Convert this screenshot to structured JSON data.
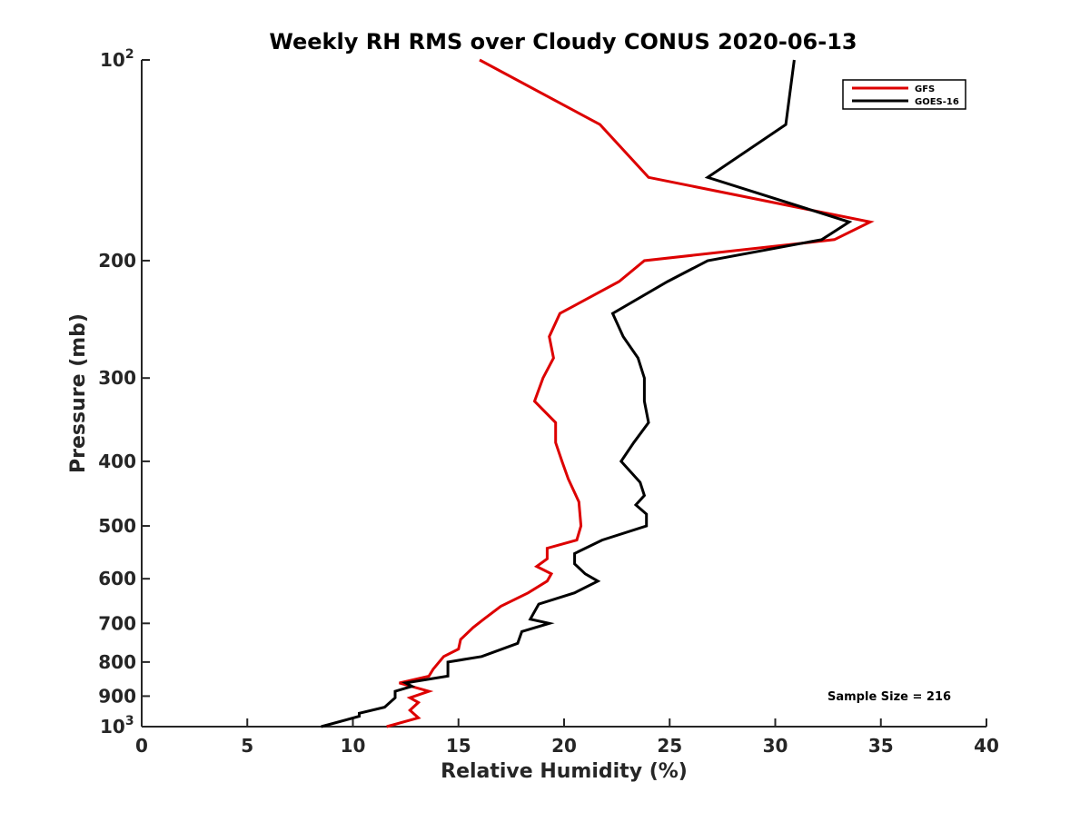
{
  "chart_data": {
    "type": "line",
    "title": "Weekly RH RMS over Cloudy CONUS 2020-06-13",
    "xlabel": "Relative Humidity (%)",
    "ylabel": "Pressure (mb)",
    "xlim": [
      0,
      40
    ],
    "ylim": [
      100,
      1000
    ],
    "y_scale": "log",
    "y_reversed": true,
    "grid": false,
    "legend_position": "top-right",
    "x_ticks": [
      0,
      5,
      10,
      15,
      20,
      25,
      30,
      35,
      40
    ],
    "x_tick_labels": [
      "0",
      "5",
      "10",
      "15",
      "20",
      "25",
      "30",
      "35",
      "40"
    ],
    "y_ticks": [
      100,
      200,
      300,
      400,
      500,
      600,
      700,
      800,
      900,
      1000
    ],
    "y_tick_labels": [
      {
        "base": "10",
        "exp": "2"
      },
      {
        "base": "200",
        "exp": ""
      },
      {
        "base": "300",
        "exp": ""
      },
      {
        "base": "400",
        "exp": ""
      },
      {
        "base": "500",
        "exp": ""
      },
      {
        "base": "600",
        "exp": ""
      },
      {
        "base": "700",
        "exp": ""
      },
      {
        "base": "800",
        "exp": ""
      },
      {
        "base": "900",
        "exp": ""
      },
      {
        "base": "10",
        "exp": "3"
      }
    ],
    "annotation": "Sample Size = 216",
    "series": [
      {
        "name": "GFS",
        "color": "#dd0000",
        "points": [
          [
            16.0,
            100
          ],
          [
            21.7,
            125
          ],
          [
            24.0,
            150
          ],
          [
            34.5,
            175
          ],
          [
            32.8,
            186
          ],
          [
            23.8,
            200
          ],
          [
            22.6,
            215
          ],
          [
            19.8,
            240
          ],
          [
            19.3,
            260
          ],
          [
            19.5,
            280
          ],
          [
            19.0,
            300
          ],
          [
            18.6,
            325
          ],
          [
            19.6,
            350
          ],
          [
            19.6,
            375
          ],
          [
            19.9,
            400
          ],
          [
            20.2,
            425
          ],
          [
            20.7,
            460
          ],
          [
            20.8,
            500
          ],
          [
            20.6,
            525
          ],
          [
            19.2,
            540
          ],
          [
            19.2,
            560
          ],
          [
            18.7,
            575
          ],
          [
            19.4,
            590
          ],
          [
            19.2,
            605
          ],
          [
            18.3,
            630
          ],
          [
            17.0,
            660
          ],
          [
            16.2,
            690
          ],
          [
            15.7,
            710
          ],
          [
            15.1,
            740
          ],
          [
            15.0,
            765
          ],
          [
            14.3,
            785
          ],
          [
            13.8,
            820
          ],
          [
            13.6,
            840
          ],
          [
            12.2,
            860
          ],
          [
            13.6,
            885
          ],
          [
            12.7,
            905
          ],
          [
            13.1,
            920
          ],
          [
            12.7,
            945
          ],
          [
            13.1,
            970
          ],
          [
            11.6,
            1000
          ]
        ]
      },
      {
        "name": "GOES-16",
        "color": "#000000",
        "points": [
          [
            30.9,
            100
          ],
          [
            30.5,
            125
          ],
          [
            26.8,
            150
          ],
          [
            33.5,
            175
          ],
          [
            32.2,
            186
          ],
          [
            26.8,
            200
          ],
          [
            24.9,
            215
          ],
          [
            22.3,
            240
          ],
          [
            22.8,
            260
          ],
          [
            23.5,
            280
          ],
          [
            23.8,
            300
          ],
          [
            23.8,
            325
          ],
          [
            24.0,
            350
          ],
          [
            23.3,
            375
          ],
          [
            22.7,
            400
          ],
          [
            23.6,
            430
          ],
          [
            23.8,
            450
          ],
          [
            23.4,
            465
          ],
          [
            23.9,
            480
          ],
          [
            23.9,
            500
          ],
          [
            21.8,
            525
          ],
          [
            20.5,
            550
          ],
          [
            20.5,
            570
          ],
          [
            21.0,
            590
          ],
          [
            21.6,
            605
          ],
          [
            20.5,
            630
          ],
          [
            18.8,
            655
          ],
          [
            18.4,
            690
          ],
          [
            19.3,
            700
          ],
          [
            18.0,
            720
          ],
          [
            17.8,
            750
          ],
          [
            16.1,
            785
          ],
          [
            14.5,
            800
          ],
          [
            14.5,
            840
          ],
          [
            12.5,
            860
          ],
          [
            12.8,
            870
          ],
          [
            12.0,
            885
          ],
          [
            12.0,
            905
          ],
          [
            11.5,
            935
          ],
          [
            10.3,
            955
          ],
          [
            10.3,
            965
          ],
          [
            8.5,
            1000
          ]
        ]
      }
    ]
  }
}
